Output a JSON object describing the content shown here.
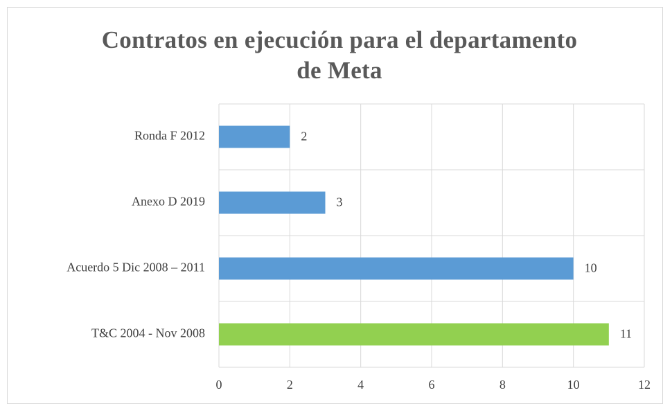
{
  "chart_data": {
    "type": "bar",
    "orientation": "horizontal",
    "title": "Contratos en ejecución para el departamento de Meta",
    "categories": [
      "Ronda F 2012",
      "Anexo D 2019",
      "Acuerdo 5 Dic 2008 – 2011",
      "T&C 2004 - Nov 2008"
    ],
    "values": [
      2,
      3,
      10,
      11
    ],
    "colors": [
      "#5b9bd5",
      "#5b9bd5",
      "#5b9bd5",
      "#92d050"
    ],
    "xlim": [
      0,
      12
    ],
    "xticks": [
      0,
      2,
      4,
      6,
      8,
      10,
      12
    ],
    "grid": true
  }
}
